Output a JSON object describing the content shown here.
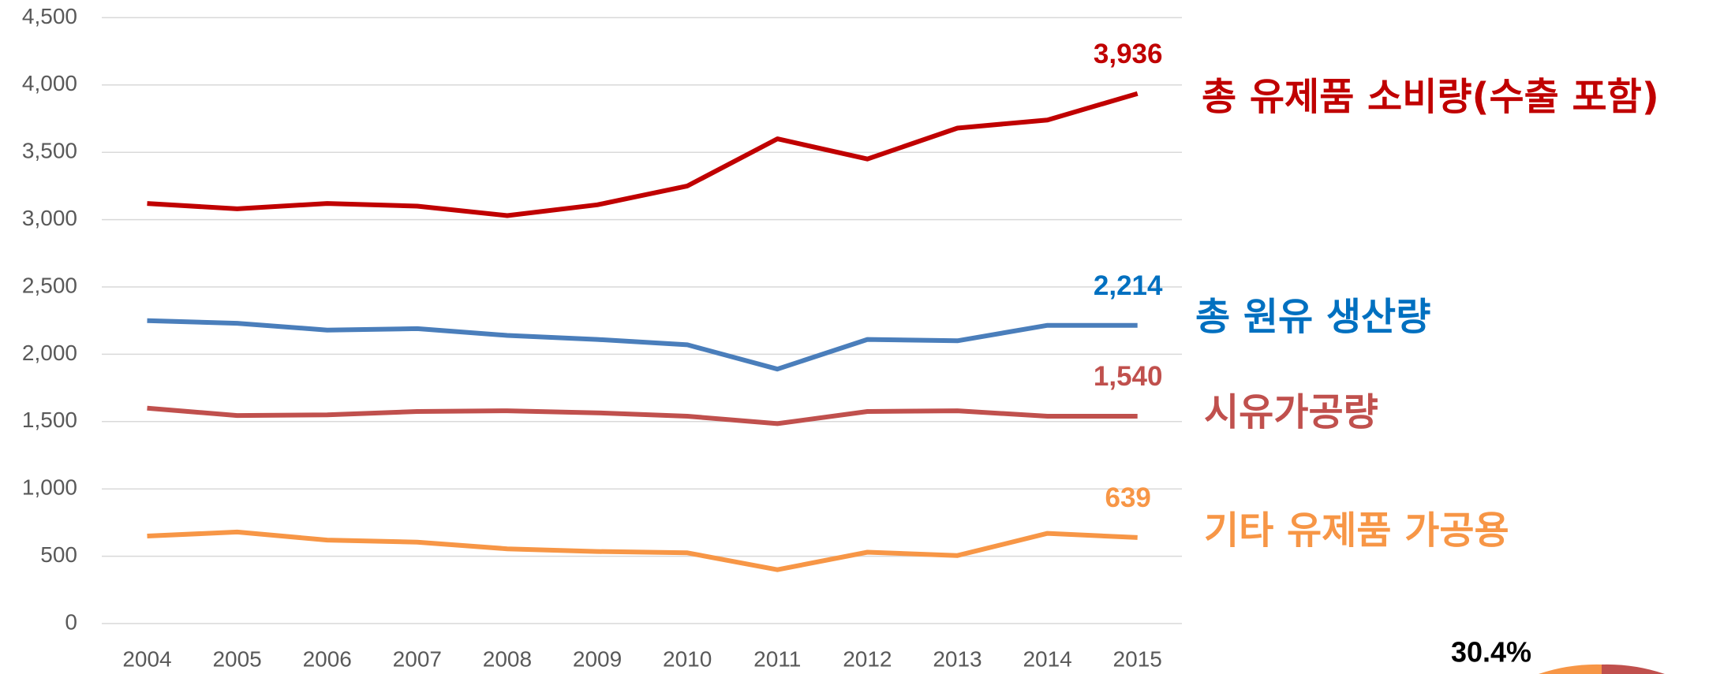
{
  "chart_data": {
    "type": "line",
    "categories": [
      "2004",
      "2005",
      "2006",
      "2007",
      "2008",
      "2009",
      "2010",
      "2011",
      "2012",
      "2013",
      "2014",
      "2015"
    ],
    "series": [
      {
        "name": "총 유제품 소비량(수출 포함)",
        "color": "#c00000",
        "label_color": "#c00000",
        "values": [
          3120,
          3080,
          3120,
          3100,
          3030,
          3110,
          3250,
          3600,
          3450,
          3680,
          3740,
          3936
        ],
        "value_labels": [
          null,
          null,
          null,
          null,
          null,
          null,
          null,
          null,
          null,
          null,
          null,
          "3,936"
        ]
      },
      {
        "name": "총 원유 생산량",
        "color": "#4a7ebb",
        "label_color": "#0070c0",
        "values": [
          2250,
          2230,
          2180,
          2190,
          2140,
          2110,
          2070,
          1890,
          2110,
          2100,
          2215,
          2214
        ],
        "value_labels": [
          null,
          null,
          null,
          null,
          null,
          null,
          null,
          null,
          null,
          null,
          null,
          "2,214"
        ]
      },
      {
        "name": "시유가공량",
        "color": "#c0504d",
        "label_color": "#c0504d",
        "values": [
          1600,
          1545,
          1550,
          1575,
          1580,
          1565,
          1540,
          1485,
          1575,
          1580,
          1540,
          1540
        ],
        "value_labels": [
          null,
          null,
          null,
          null,
          null,
          null,
          null,
          null,
          null,
          null,
          null,
          "1,540"
        ]
      },
      {
        "name": "기타 유제품 가공용",
        "color": "#f79646",
        "label_color": "#f79646",
        "values": [
          650,
          680,
          620,
          605,
          555,
          535,
          525,
          400,
          530,
          505,
          670,
          639
        ],
        "value_labels": [
          null,
          null,
          null,
          null,
          null,
          null,
          null,
          null,
          null,
          null,
          null,
          "639"
        ]
      }
    ],
    "ylim": [
      0,
      4500
    ],
    "yticks": [
      0,
      500,
      {
        "value": 1000,
        "label": "1,000"
      },
      {
        "value": 1500,
        "label": "1,500"
      },
      {
        "value": 2000,
        "label": "2,000"
      },
      {
        "value": 2500,
        "label": "2,500"
      },
      {
        "value": 3000,
        "label": "3,000"
      },
      {
        "value": 3500,
        "label": "3,500"
      },
      {
        "value": 4000,
        "label": "4,000"
      },
      {
        "value": 4500,
        "label": "4,500"
      }
    ],
    "grid": true,
    "annotation": "30.4%"
  }
}
